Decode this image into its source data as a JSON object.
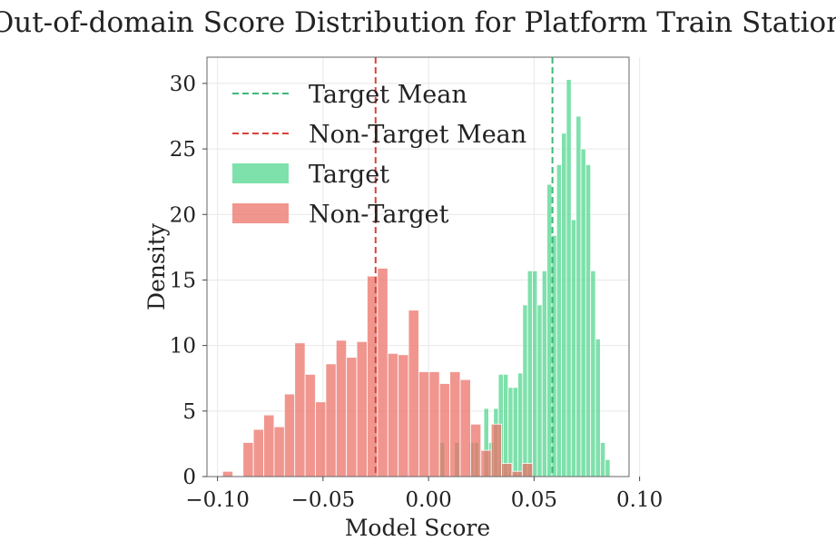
{
  "chart_data": {
    "type": "histogram",
    "title": "Out-of-domain Score Distribution for Platform Train Station",
    "xlabel": "Model Score",
    "ylabel": "Density",
    "xlim": [
      -0.105,
      0.095
    ],
    "ylim": [
      0,
      32
    ],
    "xticks": [
      -0.1,
      -0.05,
      0.0,
      0.05,
      0.1
    ],
    "xtick_labels": [
      "−0.10",
      "−0.05",
      "0.00",
      "0.05",
      "0.10"
    ],
    "yticks": [
      0,
      5,
      10,
      15,
      20,
      25,
      30
    ],
    "ytick_labels": [
      "0",
      "5",
      "10",
      "15",
      "20",
      "25",
      "30"
    ],
    "grid": true,
    "legend_position": "top-left",
    "series": [
      {
        "name": "Target",
        "color": "#4cd68a",
        "bin_width": 0.0023,
        "bins": [
          [
            0.0053,
            2.6
          ],
          [
            0.0123,
            2.6
          ],
          [
            0.0193,
            2.6
          ],
          [
            0.0216,
            2.6
          ],
          [
            0.0262,
            5.2
          ],
          [
            0.0285,
            2.6
          ],
          [
            0.0308,
            5.2
          ],
          [
            0.0331,
            7.8
          ],
          [
            0.0354,
            7.8
          ],
          [
            0.0377,
            6.8
          ],
          [
            0.04,
            6.8
          ],
          [
            0.0423,
            7.9
          ],
          [
            0.0446,
            13.1
          ],
          [
            0.0469,
            15.7
          ],
          [
            0.0492,
            15.7
          ],
          [
            0.0515,
            13.1
          ],
          [
            0.0538,
            15.7
          ],
          [
            0.0561,
            22.3
          ],
          [
            0.0584,
            18.4
          ],
          [
            0.0607,
            23.8
          ],
          [
            0.063,
            26.2
          ],
          [
            0.0653,
            30.3
          ],
          [
            0.0676,
            19.6
          ],
          [
            0.0699,
            27.5
          ],
          [
            0.0722,
            25.0
          ],
          [
            0.0745,
            23.8
          ],
          [
            0.0768,
            15.7
          ],
          [
            0.0791,
            10.5
          ],
          [
            0.0814,
            2.6
          ],
          [
            0.0837,
            1.3
          ]
        ]
      },
      {
        "name": "Non-Target",
        "color": "#eb6e64",
        "bin_width": 0.0049,
        "bins": [
          [
            -0.0976,
            0.4
          ],
          [
            -0.0879,
            2.6
          ],
          [
            -0.083,
            3.6
          ],
          [
            -0.0781,
            4.7
          ],
          [
            -0.0732,
            3.8
          ],
          [
            -0.0683,
            6.3
          ],
          [
            -0.0634,
            10.2
          ],
          [
            -0.0585,
            7.8
          ],
          [
            -0.0536,
            5.7
          ],
          [
            -0.0487,
            8.6
          ],
          [
            -0.0438,
            10.4
          ],
          [
            -0.0389,
            9.1
          ],
          [
            -0.034,
            10.3
          ],
          [
            -0.0291,
            15.3
          ],
          [
            -0.0242,
            15.9
          ],
          [
            -0.0193,
            9.4
          ],
          [
            -0.0144,
            9.3
          ],
          [
            -0.0095,
            12.7
          ],
          [
            -0.0046,
            8.0
          ],
          [
            0.0003,
            8.0
          ],
          [
            0.0052,
            7.1
          ],
          [
            0.0101,
            8.0
          ],
          [
            0.015,
            7.4
          ],
          [
            0.0199,
            4.0
          ],
          [
            0.0248,
            2.0
          ],
          [
            0.0297,
            4.0
          ],
          [
            0.0346,
            1.0
          ],
          [
            0.0395,
            0.4
          ],
          [
            0.0444,
            1.0
          ]
        ]
      }
    ],
    "reference_lines": [
      {
        "name": "Target Mean",
        "x": 0.0587,
        "color": "#3db87a",
        "style": "dashed"
      },
      {
        "name": "Non-Target Mean",
        "x": -0.0251,
        "color": "#d9433a",
        "style": "dashed"
      }
    ],
    "legend_entries": [
      "Target Mean",
      "Non-Target Mean",
      "Target",
      "Non-Target"
    ]
  }
}
